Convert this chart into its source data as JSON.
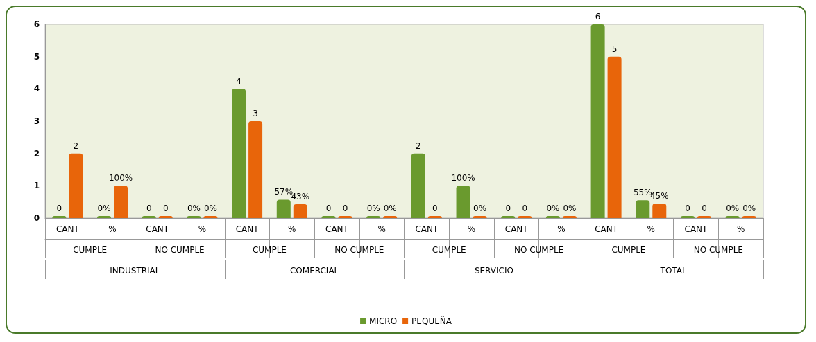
{
  "chart_data": {
    "type": "bar",
    "categories": [
      "CANT",
      "%",
      "CANT",
      "%",
      "CANT",
      "%",
      "CANT",
      "%",
      "CANT",
      "%",
      "CANT",
      "%",
      "CANT",
      "%",
      "CANT",
      "%"
    ],
    "annotations": [
      "CUMPLE",
      "NO CUMPLE",
      "CUMPLE",
      "NO CUMPLE",
      "CUMPLE",
      "NO CUMPLE",
      "CUMPLE",
      "NO CUMPLE",
      "INDUSTRIAL",
      "COMERCIAL",
      "SERVICIO",
      "TOTAL"
    ],
    "series": [
      {
        "name": "MICRO",
        "color": "#6a9a2e",
        "values": [
          0,
          0,
          0,
          0,
          4,
          0.57,
          0,
          0,
          2,
          1,
          0,
          0,
          6,
          0.55,
          0,
          0
        ],
        "value_labels": [
          "0",
          "0%",
          "0",
          "0%",
          "4",
          "57%",
          "0",
          "0%",
          "2",
          "100%",
          "0",
          "0%",
          "6",
          "55%",
          "0",
          "0%"
        ]
      },
      {
        "name": "PEQUEÑA",
        "color": "#e8650a",
        "values": [
          2,
          1,
          0,
          0,
          3,
          0.43,
          0,
          0,
          0,
          0,
          0,
          0,
          5,
          0.45,
          0,
          0
        ],
        "value_labels": [
          "2",
          "100%",
          "0",
          "0%",
          "3",
          "43%",
          "0",
          "0%",
          "0",
          "0%",
          "0",
          "0%",
          "5",
          "45%",
          "0",
          "0%"
        ]
      }
    ],
    "ylim": [
      0,
      6
    ],
    "yticks": [
      0,
      1,
      2,
      3,
      4,
      5,
      6
    ],
    "grid": false,
    "legend": "bottom"
  }
}
